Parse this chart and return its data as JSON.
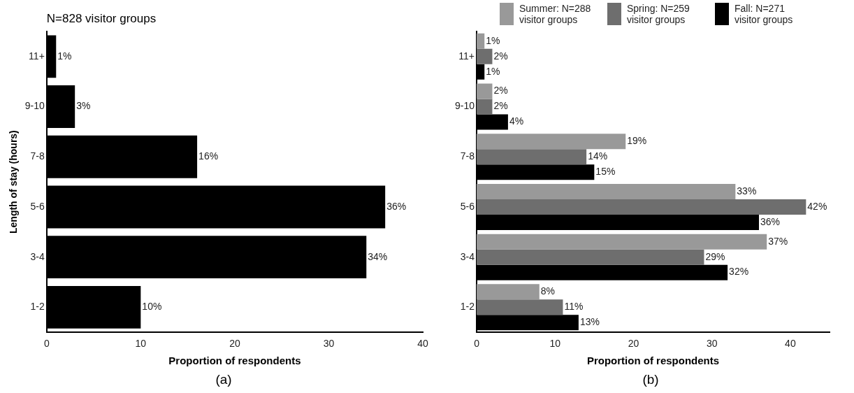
{
  "chart_data": [
    {
      "type": "bar",
      "orientation": "horizontal",
      "title": "N=828 visitor groups",
      "ylabel": "Length of stay (hours)",
      "xlabel": "Proportion of respondents",
      "categories": [
        "11+",
        "9-10",
        "7-8",
        "5-6",
        "3-4",
        "1-2"
      ],
      "values": [
        1,
        3,
        16,
        36,
        34,
        10
      ],
      "color": "#000000",
      "value_labels": [
        "1%",
        "3%",
        "16%",
        "36%",
        "34%",
        "10%"
      ],
      "xlim": [
        0,
        40
      ],
      "xticks": [
        0,
        10,
        20,
        30,
        40
      ],
      "grid": false,
      "annotations": [
        "(a)"
      ]
    },
    {
      "type": "bar",
      "orientation": "horizontal",
      "xlabel": "Proportion of respondents",
      "categories": [
        "11+",
        "9-10",
        "7-8",
        "5-6",
        "3-4",
        "1-2"
      ],
      "series": [
        {
          "name": "Summer: N=288 visitor groups",
          "color": "#999999",
          "values": [
            1,
            2,
            19,
            33,
            37,
            8
          ],
          "value_labels": [
            "1%",
            "2%",
            "19%",
            "33%",
            "37%",
            "8%"
          ]
        },
        {
          "name": "Spring: N=259 visitor groups",
          "color": "#6e6e6e",
          "values": [
            2,
            2,
            14,
            42,
            29,
            11
          ],
          "value_labels": [
            "2%",
            "2%",
            "14%",
            "42%",
            "29%",
            "11%"
          ]
        },
        {
          "name": "Fall: N=271 visitor groups",
          "color": "#000000",
          "values": [
            1,
            4,
            15,
            36,
            32,
            13
          ],
          "value_labels": [
            "1%",
            "4%",
            "15%",
            "36%",
            "32%",
            "13%"
          ]
        }
      ],
      "xlim": [
        0,
        45
      ],
      "xticks": [
        0,
        10,
        20,
        30,
        40
      ],
      "grid": false,
      "legend": "top",
      "annotations": [
        "(b)"
      ]
    }
  ]
}
